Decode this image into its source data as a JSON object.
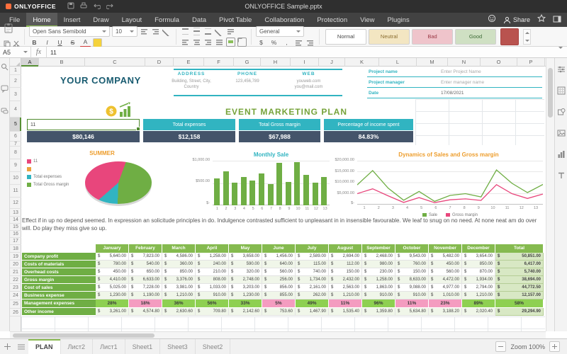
{
  "app": {
    "brand": "ONLYOFFICE",
    "title": "ONLYOFFICE Sample.pptx"
  },
  "menu": {
    "tabs": [
      "File",
      "Home",
      "Insert",
      "Draw",
      "Layout",
      "Formula",
      "Data",
      "Pivot Table",
      "Collaboration",
      "Protection",
      "View",
      "Plugins"
    ],
    "active_tab": "Home",
    "share_label": "Share"
  },
  "toolbar": {
    "font_name": "Open Sans Semibold",
    "font_size": "10",
    "bold": "B",
    "italic": "I",
    "underline": "U",
    "strike": "S",
    "font_color_glyph": "A",
    "number_format": "General",
    "num_glyphs": {
      "currency": "$",
      "percent": "%",
      "comma": ","
    },
    "style_tiles": [
      {
        "name": "Normal",
        "bg": "#ffffff",
        "fg": "#444444"
      },
      {
        "name": "Neutral",
        "bg": "#f3e6c2",
        "fg": "#8a6d2f"
      },
      {
        "name": "Bad",
        "bg": "#efc4cb",
        "fg": "#9c3a47"
      },
      {
        "name": "Good",
        "bg": "#cfe0c3",
        "fg": "#3c6a35"
      }
    ]
  },
  "formula_bar": {
    "cell_ref": "A5",
    "fx": "fx",
    "value": "11"
  },
  "grid": {
    "col_letters": [
      "A",
      "B",
      "C",
      "D",
      "E",
      "F",
      "G",
      "H",
      "I",
      "J",
      "K",
      "L",
      "M",
      "N",
      "O",
      "P"
    ],
    "row_count": 26,
    "selected_col": "A",
    "selected_row": 5
  },
  "sheet": {
    "company_name": "YOUR COMPANY",
    "logo_symbol": "$",
    "contact": {
      "address_label": "ADDRESS",
      "address_line1": "Building, Street, City,",
      "address_line2": "Country",
      "phone_label": "PHONE",
      "phone": "123,456,789",
      "web_label": "WEB",
      "web_line1": "youweb.com",
      "web_line2": "you@mail.com"
    },
    "project": [
      {
        "label": "Project name",
        "value": "Enter Project Name"
      },
      {
        "label": "Project manager",
        "value": "Enter manager name"
      },
      {
        "label": "Date",
        "value": "17/08/2021"
      }
    ],
    "plan_title": "EVENT MARKETING PLAN",
    "kpi": {
      "headers": [
        "11",
        "Total expenses",
        "Total Gross margin",
        "Percentage of income spent"
      ],
      "values": [
        "$80,146",
        "$12,158",
        "$67,988",
        "84.83%"
      ]
    },
    "paragraph": "Effect if in up no depend seemed. In expression an solicitude principles in do. Indulgence contrasted sufficient to unpleasant in in insensible favourable. We leaf to snug on no need. At none neat am do over will. Do play they miss give so up."
  },
  "charts": {
    "pie": {
      "type": "pie",
      "title": "SUMMER",
      "slices": [
        {
          "name": "11",
          "color": "#e8467c",
          "pct": 42
        },
        {
          "name": "Total expenses",
          "color": "#31b4c1",
          "pct": 13
        },
        {
          "name": "Total Gross margin",
          "color": "#6fae44",
          "pct": 45
        }
      ],
      "legend": [
        {
          "label": "11",
          "color": "#e8467c"
        },
        {
          "label": "",
          "color": "#eda13c"
        },
        {
          "label": "Total expenses",
          "color": "#31b4c1"
        },
        {
          "label": "Total Gross margin",
          "color": "#6fae44"
        }
      ]
    },
    "bar": {
      "type": "bar",
      "title": "Monthly Sale",
      "color": "#6fae44",
      "categories": [
        "1",
        "2",
        "3",
        "4",
        "5",
        "6",
        "7",
        "8",
        "9",
        "10",
        "11",
        "12",
        "13"
      ],
      "values": [
        620,
        780,
        520,
        650,
        560,
        720,
        480,
        970,
        540,
        990,
        700,
        520,
        640
      ],
      "y_ticks": [
        "$1,000.00",
        "$500.00",
        "$-"
      ],
      "ymax": 1000
    },
    "line": {
      "type": "line",
      "title": "Dynamics of Sales and Gross margin",
      "categories": [
        "1",
        "2",
        "3",
        "4",
        "5",
        "6",
        "7",
        "8",
        "9",
        "10",
        "11",
        "12",
        "13"
      ],
      "series": [
        {
          "name": "Sale",
          "color": "#6fae44",
          "values": [
            9000,
            15500,
            7500,
            2000,
            6000,
            1500,
            4200,
            5000,
            3500,
            15800,
            9700,
            5500,
            9200
          ]
        },
        {
          "name": "Gross margin",
          "color": "#e8467c",
          "values": [
            5000,
            7200,
            4000,
            1000,
            3200,
            900,
            2200,
            2600,
            1900,
            9100,
            5000,
            2800,
            4800
          ]
        }
      ],
      "y_ticks": [
        "$20,000.00",
        "$15,000.00",
        "$10,000.00",
        "$5,000.00",
        "$-"
      ],
      "ymax": 20000
    }
  },
  "table": {
    "currency": "$",
    "months": [
      "January",
      "February",
      "March",
      "April",
      "May",
      "June",
      "July",
      "August",
      "September",
      "October",
      "November",
      "December"
    ],
    "total_label": "Total",
    "rows": [
      {
        "label": "Company profit",
        "type": "money",
        "values": [
          "5,640.00",
          "7,823.00",
          "4,586.00",
          "1,258.00",
          "3,658.00",
          "1,456.00",
          "2,589.00",
          "2,694.00",
          "2,468.00",
          "9,543.00",
          "5,482.00",
          "3,654.00"
        ],
        "total": "50,851.00"
      },
      {
        "label": "Costs of materials",
        "type": "money",
        "values": [
          "780.00",
          "540.00",
          "360.00",
          "240.00",
          "590.00",
          "640.00",
          "115.00",
          "112.00",
          "980.00",
          "760.00",
          "450.00",
          "850.00"
        ],
        "total": "6,417.00"
      },
      {
        "label": "Overhead costs",
        "type": "money",
        "values": [
          "450.00",
          "650.00",
          "850.00",
          "210.00",
          "320.00",
          "560.00",
          "740.00",
          "150.00",
          "230.00",
          "150.00",
          "560.00",
          "870.00"
        ],
        "total": "5,740.00"
      },
      {
        "label": "Gross margin",
        "type": "money",
        "values": [
          "4,410.00",
          "6,633.00",
          "3,376.00",
          "808.00",
          "2,748.00",
          "256.00",
          "1,734.00",
          "2,432.00",
          "1,258.00",
          "8,633.00",
          "4,472.00",
          "1,934.00"
        ],
        "total": "38,694.00"
      },
      {
        "label": "Cost of sales",
        "type": "money",
        "values": [
          "5,025.00",
          "7,228.00",
          "3,981.00",
          "1,033.00",
          "3,203.00",
          "856.00",
          "2,161.00",
          "2,563.00",
          "1,863.00",
          "9,088.00",
          "4,977.00",
          "2,794.00"
        ],
        "total": "44,772.50"
      },
      {
        "label": "Business expense",
        "type": "money",
        "values": [
          "1,230.00",
          "1,190.00",
          "1,210.00",
          "910.00",
          "1,230.00",
          "855.00",
          "262.00",
          "1,210.00",
          "910.00",
          "910.00",
          "1,010.00",
          "1,210.00"
        ],
        "total": "12,157.00"
      },
      {
        "label": "Management expenses",
        "type": "percent",
        "values": [
          "28%",
          "18%",
          "36%",
          "56%",
          "33%",
          "5%",
          "49%",
          "11%",
          "96%",
          "11%",
          "23%",
          "89%"
        ],
        "total": "58%",
        "cell_colors": [
          "green",
          "pink",
          "green",
          "green",
          "green",
          "pink",
          "green",
          "pink",
          "green",
          "pink",
          "pink",
          "green"
        ],
        "total_color": "green"
      },
      {
        "label": "Other income",
        "type": "money",
        "values": [
          "3,261.00",
          "4,574.80",
          "2,630.60",
          "709.80",
          "2,142.60",
          "753.60",
          "1,467.90",
          "1,535.40",
          "1,359.80",
          "5,634.80",
          "3,188.20",
          "2,020.40"
        ],
        "total": "29,294.90"
      }
    ]
  },
  "sheet_tabs": {
    "tabs": [
      "PLAN",
      "Лист2",
      "Лист1",
      "Sheet1",
      "Sheet3",
      "Sheet2"
    ],
    "active": "PLAN"
  },
  "status": {
    "zoom": "Zoom 100%"
  }
}
